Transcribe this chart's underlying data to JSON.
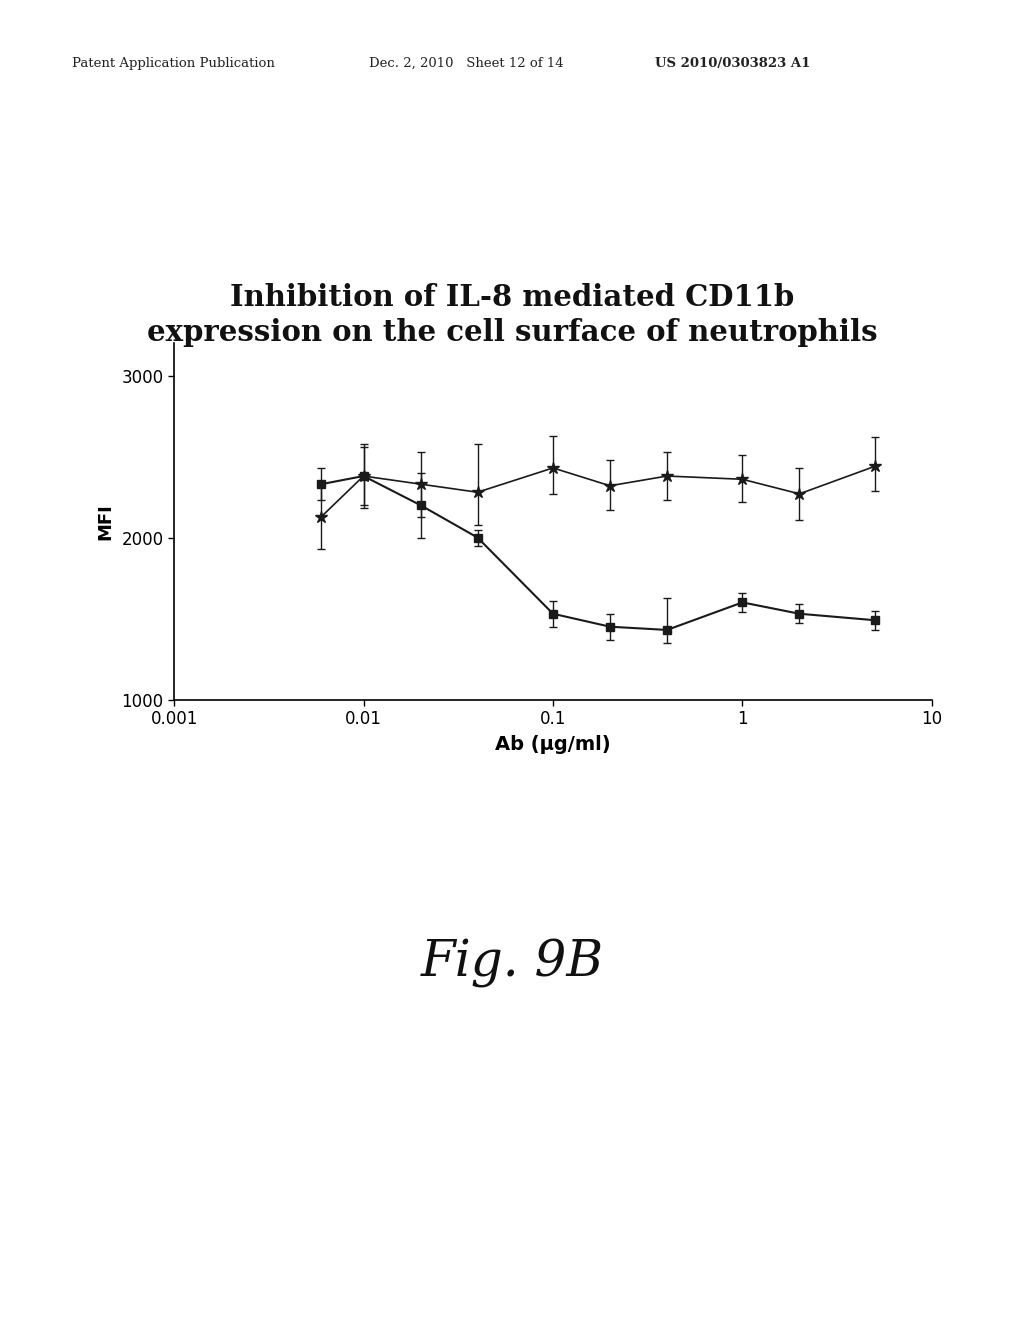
{
  "title_line1": "Inhibition of IL-8 mediated CD11b",
  "title_line2": "expression on the cell surface of neutrophils",
  "xlabel": "Ab (μg/ml)",
  "ylabel": "MFI",
  "fig_label": "Fig. 9B",
  "xlim": [
    0.001,
    10
  ],
  "ylim": [
    1000,
    3200
  ],
  "yticks": [
    1000,
    2000,
    3000
  ],
  "xtick_labels": [
    "0.001",
    "0.01",
    "0.1",
    "1",
    "10"
  ],
  "xtick_positions": [
    0.001,
    0.01,
    0.1,
    1,
    10
  ],
  "star_x": [
    0.006,
    0.01,
    0.02,
    0.04,
    0.1,
    0.2,
    0.4,
    1.0,
    2.0,
    5.0
  ],
  "star_y": [
    2130,
    2380,
    2330,
    2280,
    2430,
    2320,
    2380,
    2360,
    2270,
    2440
  ],
  "star_yerr_low": [
    200,
    180,
    200,
    200,
    160,
    150,
    150,
    140,
    160,
    150
  ],
  "star_yerr_high": [
    200,
    180,
    200,
    300,
    200,
    160,
    150,
    150,
    160,
    180
  ],
  "square_x": [
    0.006,
    0.01,
    0.02,
    0.04,
    0.1,
    0.2,
    0.4,
    1.0,
    2.0,
    5.0
  ],
  "square_y": [
    2330,
    2380,
    2200,
    2000,
    1530,
    1450,
    1430,
    1600,
    1530,
    1490
  ],
  "square_yerr_low": [
    100,
    200,
    200,
    50,
    80,
    80,
    80,
    60,
    60,
    60
  ],
  "square_yerr_high": [
    100,
    200,
    200,
    50,
    80,
    80,
    200,
    60,
    60,
    60
  ],
  "line_color": "#1a1a1a",
  "background_color": "#ffffff",
  "header_left": "Patent Application Publication",
  "header_mid": "Dec. 2, 2010   Sheet 12 of 14",
  "header_right": "US 2010/0303823 A1"
}
